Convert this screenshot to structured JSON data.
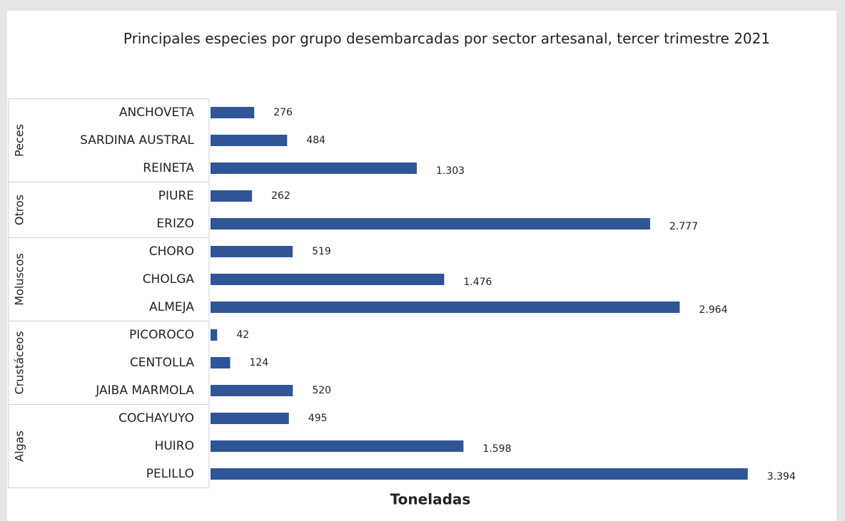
{
  "chart_data": {
    "type": "bar",
    "orientation": "horizontal",
    "title": "Principales especies por grupo desembarcadas por sector artesanal, tercer trimestre 2021",
    "x_label": "Toneladas",
    "color": "#2f5597",
    "xlim": [
      0,
      3900
    ],
    "groups": [
      {
        "name": "Peces",
        "categories": [
          "ANCHOVETA",
          "SARDINA AUSTRAL",
          "REINETA"
        ],
        "values": [
          276,
          484,
          1303
        ],
        "value_labels": [
          "276",
          "484",
          "1.303"
        ]
      },
      {
        "name": "Otros",
        "categories": [
          "PIURE",
          "ERIZO"
        ],
        "values": [
          262,
          2777
        ],
        "value_labels": [
          "262",
          "2.777"
        ]
      },
      {
        "name": "Moluscos",
        "categories": [
          "CHORO",
          "CHOLGA",
          "ALMEJA"
        ],
        "values": [
          519,
          1476,
          2964
        ],
        "value_labels": [
          "519",
          "1.476",
          "2.964"
        ]
      },
      {
        "name": "Crustáceos",
        "categories": [
          "PICOROCO",
          "CENTOLLA",
          "JAIBA MARMOLA"
        ],
        "values": [
          42,
          124,
          520
        ],
        "value_labels": [
          "42",
          "124",
          "520"
        ]
      },
      {
        "name": "Algas",
        "categories": [
          "COCHAYUYO",
          "HUIRO",
          "PELILLO"
        ],
        "values": [
          495,
          1598,
          3394
        ],
        "value_labels": [
          "495",
          "1.598",
          "3.394"
        ]
      }
    ]
  }
}
